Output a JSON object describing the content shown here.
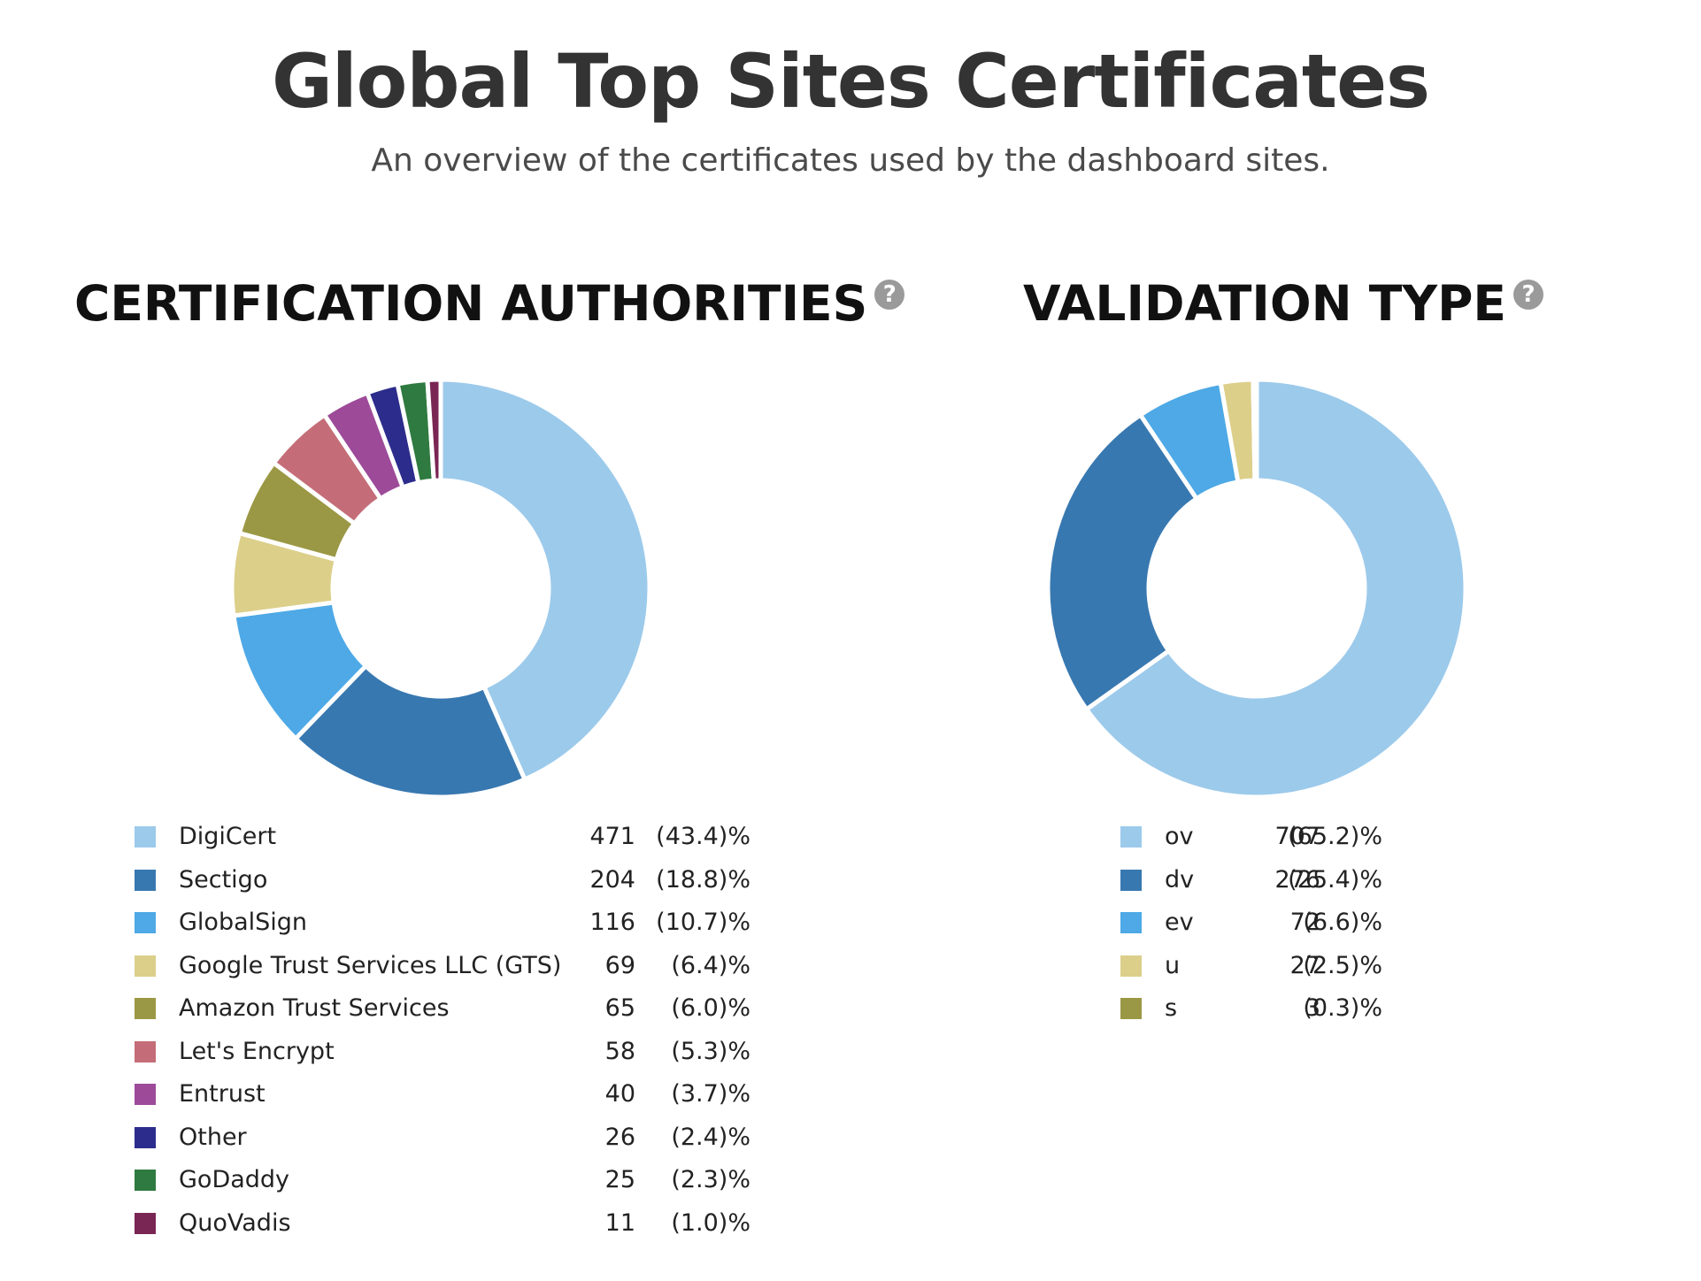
{
  "page": {
    "title": "Global Top Sites Certificates",
    "subtitle": "An overview of the certificates used by the dashboard sites."
  },
  "sections": {
    "ca": {
      "title": "CERTIFICATION AUTHORITIES",
      "help_icon": "question-circle-icon",
      "help_glyph": "?"
    },
    "vt": {
      "title": "VALIDATION TYPE",
      "help_icon": "question-circle-icon",
      "help_glyph": "?"
    }
  },
  "chart_data": [
    {
      "type": "pie",
      "subtype": "donut",
      "title": "CERTIFICATION AUTHORITIES",
      "slices": [
        {
          "label": "DigiCert",
          "value": 471,
          "percent": "(43.4)%",
          "color": "#9ccaeb"
        },
        {
          "label": "Sectigo",
          "value": 204,
          "percent": "(18.8)%",
          "color": "#3878b0"
        },
        {
          "label": "GlobalSign",
          "value": 116,
          "percent": "(10.7)%",
          "color": "#4ea9e6"
        },
        {
          "label": "Google Trust Services LLC (GTS)",
          "value": 69,
          "percent": "(6.4)%",
          "color": "#dccf8a"
        },
        {
          "label": "Amazon Trust Services",
          "value": 65,
          "percent": "(6.0)%",
          "color": "#9b9845"
        },
        {
          "label": "Let's Encrypt",
          "value": 58,
          "percent": "(5.3)%",
          "color": "#c46d78"
        },
        {
          "label": "Entrust",
          "value": 40,
          "percent": "(3.7)%",
          "color": "#9d4a99"
        },
        {
          "label": "Other",
          "value": 26,
          "percent": "(2.4)%",
          "color": "#2c2c8c"
        },
        {
          "label": "GoDaddy",
          "value": 25,
          "percent": "(2.3)%",
          "color": "#2f7a40"
        },
        {
          "label": "QuoVadis",
          "value": 11,
          "percent": "(1.0)%",
          "color": "#7a2654"
        }
      ]
    },
    {
      "type": "pie",
      "subtype": "donut",
      "title": "VALIDATION TYPE",
      "slices": [
        {
          "label": "ov",
          "value": 707,
          "percent": "(65.2)%",
          "color": "#9ccaeb"
        },
        {
          "label": "dv",
          "value": 276,
          "percent": "(25.4)%",
          "color": "#3878b0"
        },
        {
          "label": "ev",
          "value": 72,
          "percent": "(6.6)%",
          "color": "#4ea9e6"
        },
        {
          "label": "u",
          "value": 27,
          "percent": "(2.5)%",
          "color": "#dccf8a"
        },
        {
          "label": "s",
          "value": 3,
          "percent": "(0.3)%",
          "color": "#9b9845"
        }
      ]
    }
  ]
}
